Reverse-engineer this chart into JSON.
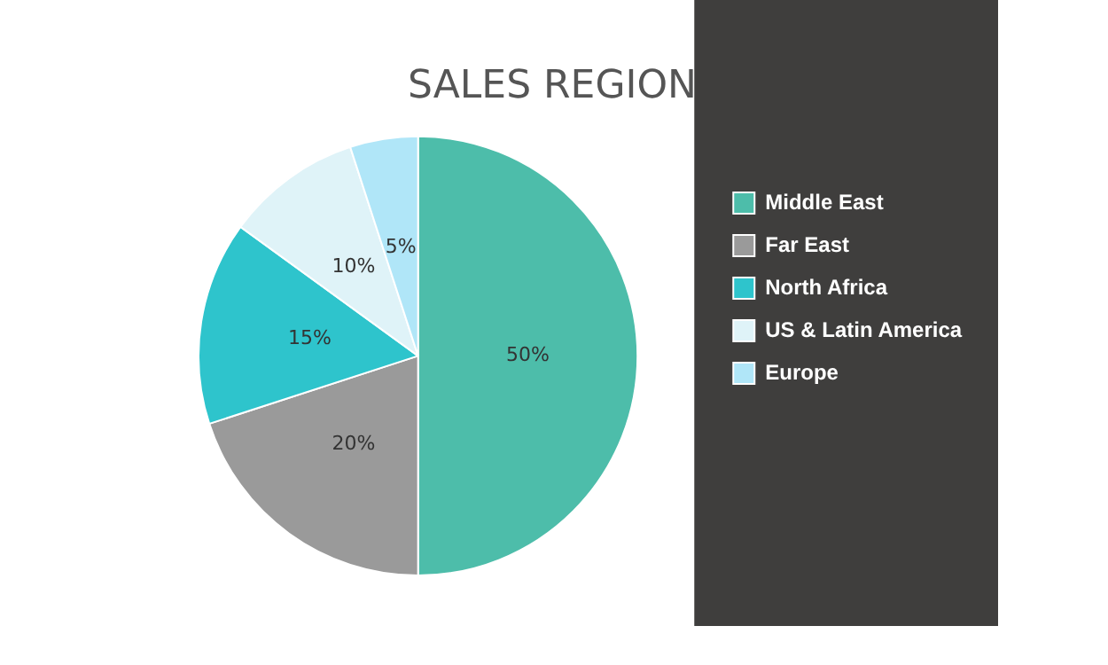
{
  "chart_data": {
    "type": "pie",
    "title": "SALES REGION",
    "categories": [
      "Middle East",
      "Far East",
      "North Africa",
      "US & Latin America",
      "Europe"
    ],
    "values": [
      50,
      20,
      15,
      10,
      5
    ],
    "value_labels": [
      "50%",
      "20%",
      "15%",
      "10%",
      "5%"
    ],
    "colors": [
      "#4dbdaa",
      "#9a9a9a",
      "#2ec4cc",
      "#dff3f8",
      "#b0e6f8"
    ],
    "legend": "right"
  }
}
